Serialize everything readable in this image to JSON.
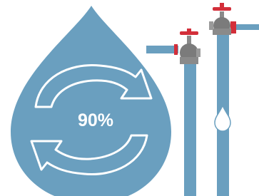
{
  "label": "90%"
}
